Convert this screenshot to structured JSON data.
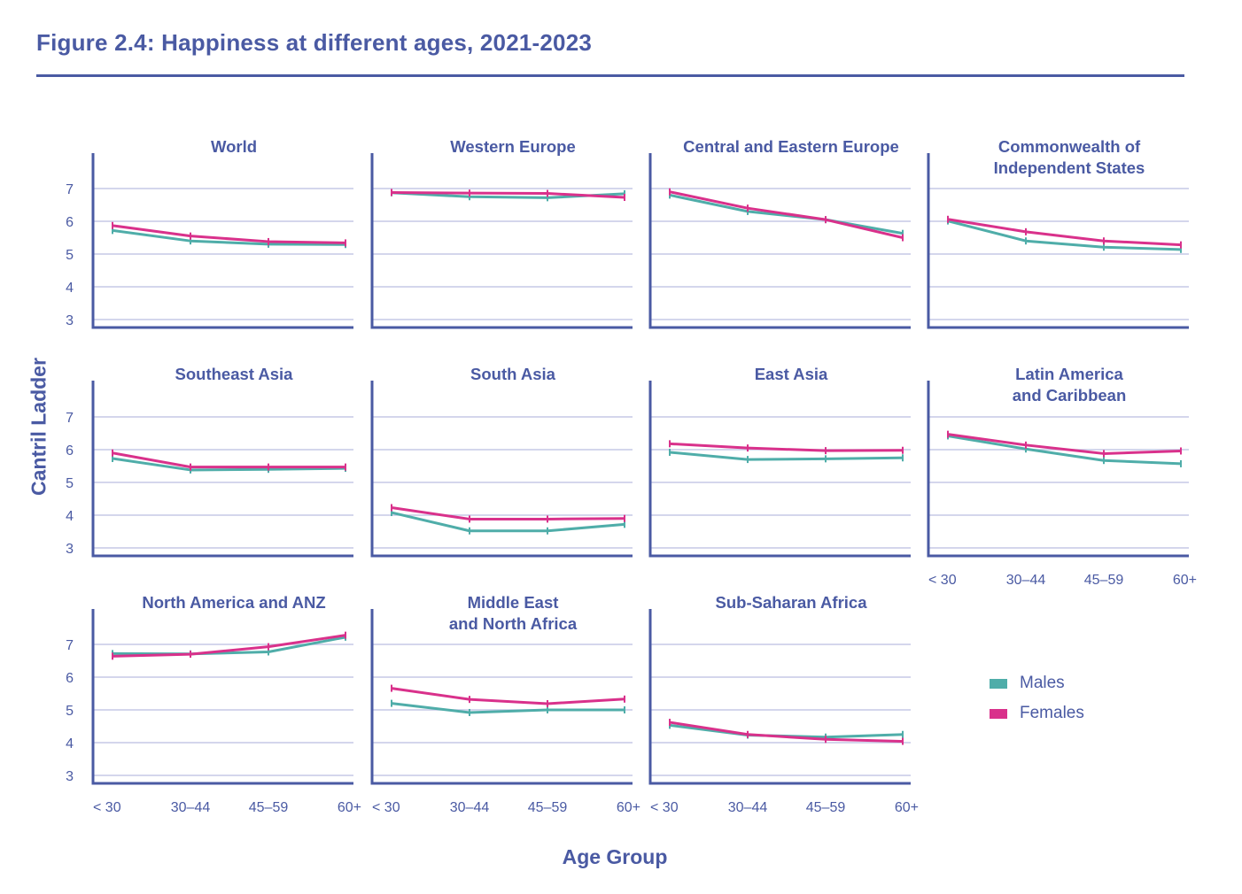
{
  "figure": {
    "title": "Figure 2.4: Happiness at different ages, 2021-2023"
  },
  "colors": {
    "title": "#4a5aa3",
    "axis": "#4a5aa3",
    "grid": "#c5c9e6",
    "males": "#4fada9",
    "females": "#d9318b"
  },
  "legend": {
    "items": [
      {
        "label": "Males",
        "color": "#4fada9"
      },
      {
        "label": "Females",
        "color": "#d9318b"
      }
    ]
  },
  "chart_data": {
    "type": "line",
    "title": "Figure 2.4: Happiness at different ages, 2021-2023",
    "xlabel": "Age Group",
    "ylabel": "Cantril Ladder",
    "categories": [
      "< 30",
      "30–44",
      "45–59",
      "60+"
    ],
    "yticks": [
      3,
      4,
      5,
      6,
      7
    ],
    "ylim": [
      2.75,
      8.0
    ],
    "grid": true,
    "legend_position": "bottom-right",
    "series_names": [
      "Males",
      "Females"
    ],
    "panels": [
      {
        "title": [
          "World"
        ],
        "males": [
          5.72,
          5.4,
          5.3,
          5.29
        ],
        "females": [
          5.87,
          5.55,
          5.38,
          5.34
        ]
      },
      {
        "title": [
          "Western Europe"
        ],
        "males": [
          6.87,
          6.75,
          6.72,
          6.84
        ],
        "females": [
          6.88,
          6.86,
          6.85,
          6.73
        ]
      },
      {
        "title": [
          "Central and Eastern Europe"
        ],
        "males": [
          6.8,
          6.3,
          6.05,
          5.63
        ],
        "females": [
          6.9,
          6.4,
          6.05,
          5.5
        ]
      },
      {
        "title": [
          "Commonwealth of",
          "Independent States"
        ],
        "males": [
          6.01,
          5.4,
          5.21,
          5.14
        ],
        "females": [
          6.06,
          5.68,
          5.4,
          5.28
        ]
      },
      {
        "title": [
          "Southeast Asia"
        ],
        "males": [
          5.73,
          5.38,
          5.4,
          5.43
        ],
        "females": [
          5.9,
          5.47,
          5.47,
          5.47
        ]
      },
      {
        "title": [
          "South Asia"
        ],
        "males": [
          4.08,
          3.52,
          3.52,
          3.72
        ],
        "females": [
          4.23,
          3.88,
          3.88,
          3.9
        ]
      },
      {
        "title": [
          "East Asia"
        ],
        "males": [
          5.92,
          5.7,
          5.72,
          5.75
        ],
        "females": [
          6.18,
          6.05,
          5.97,
          5.98
        ]
      },
      {
        "title": [
          "Latin America",
          "and Caribbean"
        ],
        "males": [
          6.42,
          6.02,
          5.67,
          5.57
        ],
        "females": [
          6.47,
          6.14,
          5.88,
          5.96
        ]
      },
      {
        "title": [
          "North America and ANZ"
        ],
        "males": [
          6.72,
          6.71,
          6.77,
          7.22
        ],
        "females": [
          6.64,
          6.7,
          6.93,
          7.28
        ]
      },
      {
        "title": [
          "Middle East",
          "and North Africa"
        ],
        "males": [
          5.2,
          4.92,
          5.0,
          5.0
        ],
        "females": [
          5.66,
          5.32,
          5.19,
          5.33
        ]
      },
      {
        "title": [
          "Sub-Saharan Africa"
        ],
        "males": [
          4.53,
          4.23,
          4.17,
          4.25
        ],
        "females": [
          4.62,
          4.25,
          4.1,
          4.04
        ]
      }
    ]
  }
}
